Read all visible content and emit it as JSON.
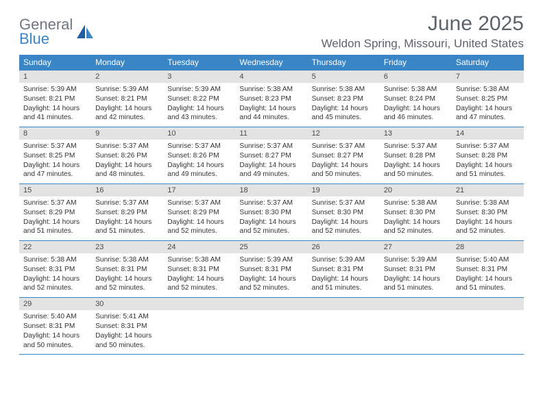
{
  "logo": {
    "word1": "General",
    "word2": "Blue"
  },
  "title": "June 2025",
  "location": "Weldon Spring, Missouri, United States",
  "colors": {
    "header_bg": "#3a85c6",
    "header_text": "#ffffff",
    "daynum_bg": "#e3e3e3",
    "rule": "#3a85c6",
    "title_color": "#5b636b",
    "logo_gray": "#6f7780",
    "logo_blue": "#3a85c6"
  },
  "weekdays": [
    "Sunday",
    "Monday",
    "Tuesday",
    "Wednesday",
    "Thursday",
    "Friday",
    "Saturday"
  ],
  "weeks": [
    [
      {
        "n": "1",
        "sr": "5:39 AM",
        "ss": "8:21 PM",
        "dl": "14 hours and 41 minutes."
      },
      {
        "n": "2",
        "sr": "5:39 AM",
        "ss": "8:21 PM",
        "dl": "14 hours and 42 minutes."
      },
      {
        "n": "3",
        "sr": "5:39 AM",
        "ss": "8:22 PM",
        "dl": "14 hours and 43 minutes."
      },
      {
        "n": "4",
        "sr": "5:38 AM",
        "ss": "8:23 PM",
        "dl": "14 hours and 44 minutes."
      },
      {
        "n": "5",
        "sr": "5:38 AM",
        "ss": "8:23 PM",
        "dl": "14 hours and 45 minutes."
      },
      {
        "n": "6",
        "sr": "5:38 AM",
        "ss": "8:24 PM",
        "dl": "14 hours and 46 minutes."
      },
      {
        "n": "7",
        "sr": "5:38 AM",
        "ss": "8:25 PM",
        "dl": "14 hours and 47 minutes."
      }
    ],
    [
      {
        "n": "8",
        "sr": "5:37 AM",
        "ss": "8:25 PM",
        "dl": "14 hours and 47 minutes."
      },
      {
        "n": "9",
        "sr": "5:37 AM",
        "ss": "8:26 PM",
        "dl": "14 hours and 48 minutes."
      },
      {
        "n": "10",
        "sr": "5:37 AM",
        "ss": "8:26 PM",
        "dl": "14 hours and 49 minutes."
      },
      {
        "n": "11",
        "sr": "5:37 AM",
        "ss": "8:27 PM",
        "dl": "14 hours and 49 minutes."
      },
      {
        "n": "12",
        "sr": "5:37 AM",
        "ss": "8:27 PM",
        "dl": "14 hours and 50 minutes."
      },
      {
        "n": "13",
        "sr": "5:37 AM",
        "ss": "8:28 PM",
        "dl": "14 hours and 50 minutes."
      },
      {
        "n": "14",
        "sr": "5:37 AM",
        "ss": "8:28 PM",
        "dl": "14 hours and 51 minutes."
      }
    ],
    [
      {
        "n": "15",
        "sr": "5:37 AM",
        "ss": "8:29 PM",
        "dl": "14 hours and 51 minutes."
      },
      {
        "n": "16",
        "sr": "5:37 AM",
        "ss": "8:29 PM",
        "dl": "14 hours and 51 minutes."
      },
      {
        "n": "17",
        "sr": "5:37 AM",
        "ss": "8:29 PM",
        "dl": "14 hours and 52 minutes."
      },
      {
        "n": "18",
        "sr": "5:37 AM",
        "ss": "8:30 PM",
        "dl": "14 hours and 52 minutes."
      },
      {
        "n": "19",
        "sr": "5:37 AM",
        "ss": "8:30 PM",
        "dl": "14 hours and 52 minutes."
      },
      {
        "n": "20",
        "sr": "5:38 AM",
        "ss": "8:30 PM",
        "dl": "14 hours and 52 minutes."
      },
      {
        "n": "21",
        "sr": "5:38 AM",
        "ss": "8:30 PM",
        "dl": "14 hours and 52 minutes."
      }
    ],
    [
      {
        "n": "22",
        "sr": "5:38 AM",
        "ss": "8:31 PM",
        "dl": "14 hours and 52 minutes."
      },
      {
        "n": "23",
        "sr": "5:38 AM",
        "ss": "8:31 PM",
        "dl": "14 hours and 52 minutes."
      },
      {
        "n": "24",
        "sr": "5:38 AM",
        "ss": "8:31 PM",
        "dl": "14 hours and 52 minutes."
      },
      {
        "n": "25",
        "sr": "5:39 AM",
        "ss": "8:31 PM",
        "dl": "14 hours and 52 minutes."
      },
      {
        "n": "26",
        "sr": "5:39 AM",
        "ss": "8:31 PM",
        "dl": "14 hours and 51 minutes."
      },
      {
        "n": "27",
        "sr": "5:39 AM",
        "ss": "8:31 PM",
        "dl": "14 hours and 51 minutes."
      },
      {
        "n": "28",
        "sr": "5:40 AM",
        "ss": "8:31 PM",
        "dl": "14 hours and 51 minutes."
      }
    ],
    [
      {
        "n": "29",
        "sr": "5:40 AM",
        "ss": "8:31 PM",
        "dl": "14 hours and 50 minutes."
      },
      {
        "n": "30",
        "sr": "5:41 AM",
        "ss": "8:31 PM",
        "dl": "14 hours and 50 minutes."
      },
      null,
      null,
      null,
      null,
      null
    ]
  ],
  "labels": {
    "sunrise": "Sunrise: ",
    "sunset": "Sunset: ",
    "daylight": "Daylight: "
  }
}
